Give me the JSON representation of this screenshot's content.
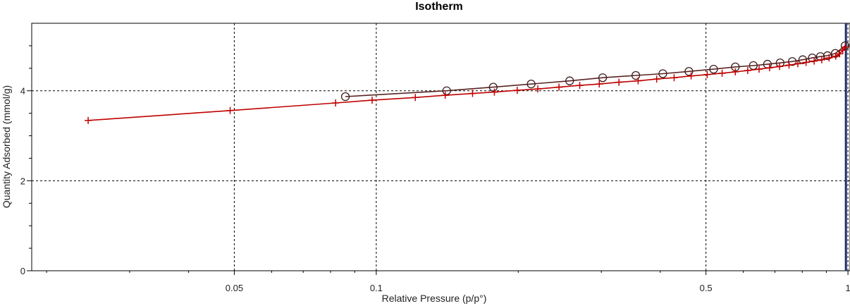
{
  "chart_data": {
    "type": "line",
    "title": "Isotherm",
    "xlabel": "Relative Pressure (p/p°)",
    "ylabel": "Quantity Adsorbed (mmol/g)",
    "x_scale": "log",
    "xlim": [
      0.0186,
      1.01
    ],
    "ylim": [
      0,
      5.5
    ],
    "grid": true,
    "x_ticks": [
      {
        "value": 0.05,
        "label": "0.05"
      },
      {
        "value": 0.1,
        "label": "0.1"
      },
      {
        "value": 0.5,
        "label": "0.5"
      },
      {
        "value": 1,
        "label": "1"
      }
    ],
    "y_ticks": [
      {
        "value": 0,
        "label": "0"
      },
      {
        "value": 2,
        "label": "2"
      },
      {
        "value": 4,
        "label": "4"
      }
    ],
    "reference_line_x": 0.99,
    "colors": {
      "adsorption": "#c00000",
      "desorption": "#5a2424",
      "desorption_marker": "#3c1e1e",
      "reference_line": "#1f2d6e",
      "grid": "#000000"
    },
    "series": [
      {
        "marker": "plus",
        "x": [
          0.0245,
          0.049,
          0.082,
          0.098,
          0.121,
          0.14,
          0.16,
          0.178,
          0.199,
          0.22,
          0.244,
          0.27,
          0.297,
          0.327,
          0.359,
          0.393,
          0.428,
          0.465,
          0.503,
          0.541,
          0.577,
          0.613,
          0.648,
          0.682,
          0.716,
          0.75,
          0.783,
          0.815,
          0.848,
          0.88,
          0.912,
          0.942,
          0.96,
          0.975,
          0.987
        ],
        "y": [
          3.34,
          3.56,
          3.73,
          3.79,
          3.85,
          3.9,
          3.94,
          3.97,
          4.01,
          4.04,
          4.08,
          4.12,
          4.15,
          4.19,
          4.22,
          4.26,
          4.29,
          4.33,
          4.36,
          4.39,
          4.42,
          4.45,
          4.48,
          4.51,
          4.54,
          4.57,
          4.6,
          4.63,
          4.66,
          4.69,
          4.73,
          4.77,
          4.82,
          4.9,
          4.97
        ]
      },
      {
        "marker": "circle",
        "x": [
          0.986,
          0.94,
          0.905,
          0.874,
          0.84,
          0.802,
          0.762,
          0.718,
          0.675,
          0.63,
          0.577,
          0.519,
          0.46,
          0.405,
          0.355,
          0.302,
          0.257,
          0.213,
          0.177,
          0.141,
          0.086
        ],
        "y": [
          5.0,
          4.83,
          4.78,
          4.76,
          4.73,
          4.69,
          4.65,
          4.62,
          4.59,
          4.56,
          4.53,
          4.48,
          4.43,
          4.38,
          4.34,
          4.29,
          4.22,
          4.15,
          4.08,
          4.0,
          3.87
        ]
      }
    ]
  }
}
